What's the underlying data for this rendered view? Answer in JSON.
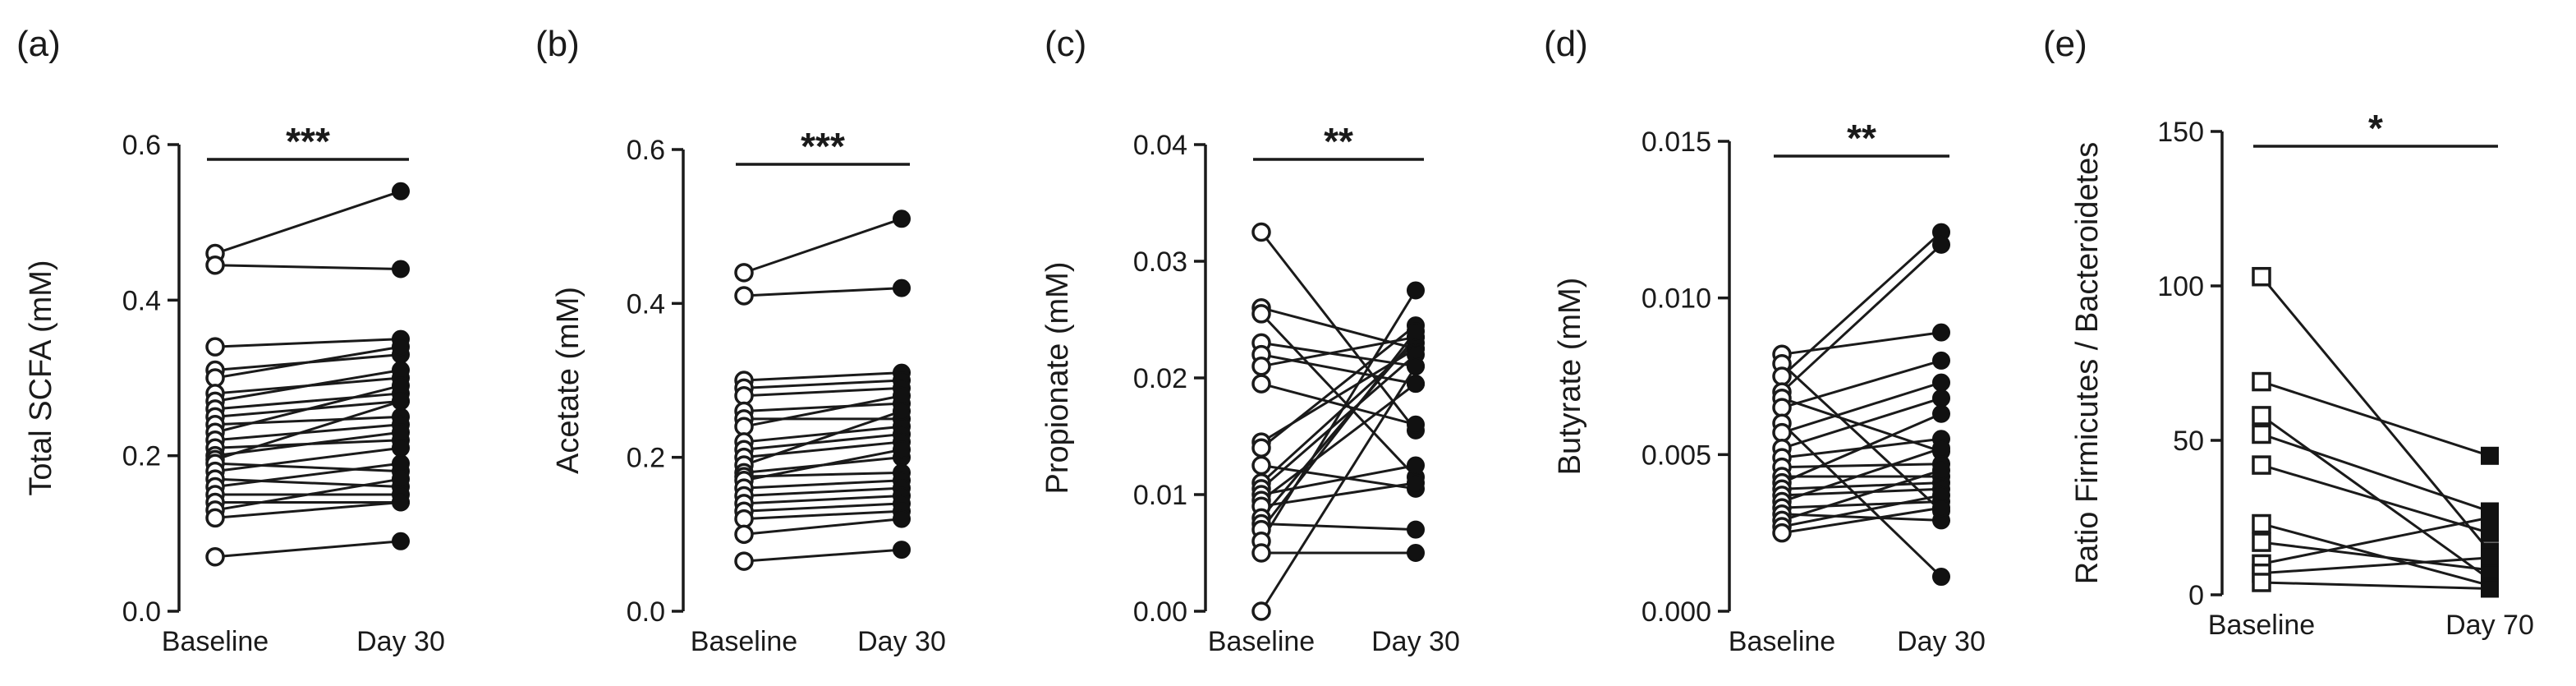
{
  "chart_data": [
    {
      "type": "scatter",
      "panel": "(a)",
      "ylabel": "Total SCFA (mM)",
      "ylim": [
        0,
        0.6
      ],
      "yticks": [
        0.0,
        0.2,
        0.4,
        0.6
      ],
      "yticklabels": [
        "0.0",
        "0.2",
        "0.4",
        "0.6"
      ],
      "categories": [
        "Baseline",
        "Day 30"
      ],
      "significance": "***",
      "marker": "circle",
      "baseline": [
        0.46,
        0.445,
        0.34,
        0.31,
        0.3,
        0.28,
        0.27,
        0.26,
        0.25,
        0.24,
        0.23,
        0.22,
        0.21,
        0.2,
        0.195,
        0.19,
        0.18,
        0.17,
        0.16,
        0.15,
        0.14,
        0.13,
        0.12,
        0.07
      ],
      "followup": [
        0.54,
        0.44,
        0.35,
        0.33,
        0.34,
        0.3,
        0.31,
        0.28,
        0.27,
        0.25,
        0.29,
        0.24,
        0.22,
        0.23,
        0.27,
        0.18,
        0.21,
        0.16,
        0.19,
        0.15,
        0.14,
        0.17,
        0.14,
        0.09
      ]
    },
    {
      "type": "scatter",
      "panel": "(b)",
      "ylabel": "Acetate (mM)",
      "ylim": [
        0,
        0.6
      ],
      "yticks": [
        0.0,
        0.2,
        0.4,
        0.6
      ],
      "yticklabels": [
        "0.0",
        "0.2",
        "0.4",
        "0.6"
      ],
      "categories": [
        "Baseline",
        "Day 30"
      ],
      "significance": "***",
      "marker": "circle",
      "baseline": [
        0.44,
        0.41,
        0.3,
        0.29,
        0.28,
        0.26,
        0.25,
        0.24,
        0.22,
        0.21,
        0.2,
        0.19,
        0.18,
        0.175,
        0.17,
        0.16,
        0.15,
        0.14,
        0.13,
        0.12,
        0.1,
        0.065
      ],
      "followup": [
        0.51,
        0.42,
        0.31,
        0.3,
        0.29,
        0.27,
        0.25,
        0.28,
        0.24,
        0.23,
        0.22,
        0.26,
        0.2,
        0.18,
        0.21,
        0.17,
        0.16,
        0.15,
        0.14,
        0.13,
        0.12,
        0.08
      ]
    },
    {
      "type": "scatter",
      "panel": "(c)",
      "ylabel": "Propionate (mM)",
      "ylim": [
        0,
        0.04
      ],
      "yticks": [
        0.0,
        0.01,
        0.02,
        0.03,
        0.04
      ],
      "yticklabels": [
        "0.00",
        "0.01",
        "0.02",
        "0.03",
        "0.04"
      ],
      "categories": [
        "Baseline",
        "Day 30"
      ],
      "significance": "**",
      "marker": "circle",
      "baseline": [
        0.0325,
        0.026,
        0.0255,
        0.023,
        0.022,
        0.021,
        0.0195,
        0.0145,
        0.014,
        0.0125,
        0.011,
        0.0105,
        0.01,
        0.0095,
        0.009,
        0.008,
        0.0075,
        0.007,
        0.006,
        0.005,
        0.0
      ],
      "followup": [
        0.0155,
        0.0225,
        0.0115,
        0.021,
        0.0195,
        0.0235,
        0.016,
        0.0225,
        0.0245,
        0.0105,
        0.023,
        0.022,
        0.0125,
        0.0195,
        0.011,
        0.0235,
        0.007,
        0.024,
        0.0275,
        0.005,
        0.021
      ]
    },
    {
      "type": "scatter",
      "panel": "(d)",
      "ylabel": "Butyrate (mM)",
      "ylim": [
        0,
        0.015
      ],
      "yticks": [
        0.0,
        0.005,
        0.01,
        0.015
      ],
      "yticklabels": [
        "0.000",
        "0.005",
        "0.010",
        "0.015"
      ],
      "categories": [
        "Baseline",
        "Day 30"
      ],
      "significance": "**",
      "marker": "circle",
      "baseline": [
        0.0082,
        0.0079,
        0.0075,
        0.007,
        0.0068,
        0.0065,
        0.006,
        0.0057,
        0.0052,
        0.0049,
        0.0046,
        0.0043,
        0.0041,
        0.0039,
        0.0037,
        0.0035,
        0.0033,
        0.0031,
        0.0029,
        0.0027,
        0.0025
      ],
      "followup": [
        0.0089,
        0.0032,
        0.0121,
        0.0117,
        0.0051,
        0.008,
        0.0011,
        0.0073,
        0.0068,
        0.0055,
        0.0047,
        0.0043,
        0.0063,
        0.0041,
        0.0039,
        0.0052,
        0.0035,
        0.0029,
        0.0045,
        0.0037,
        0.0033
      ]
    },
    {
      "type": "scatter",
      "panel": "(e)",
      "ylabel": "Ratio Firmicutes / Bacteroidetes",
      "ylim": [
        0,
        150
      ],
      "yticks": [
        0,
        50,
        100,
        150
      ],
      "yticklabels": [
        "0",
        "50",
        "100",
        "150"
      ],
      "categories": [
        "Baseline",
        "Day 70"
      ],
      "significance": "*",
      "marker": "square",
      "baseline": [
        103,
        69,
        58,
        52,
        42,
        23,
        17,
        10,
        7,
        4
      ],
      "followup": [
        14,
        45,
        5,
        27,
        20,
        3,
        8,
        25,
        12,
        2
      ]
    }
  ]
}
